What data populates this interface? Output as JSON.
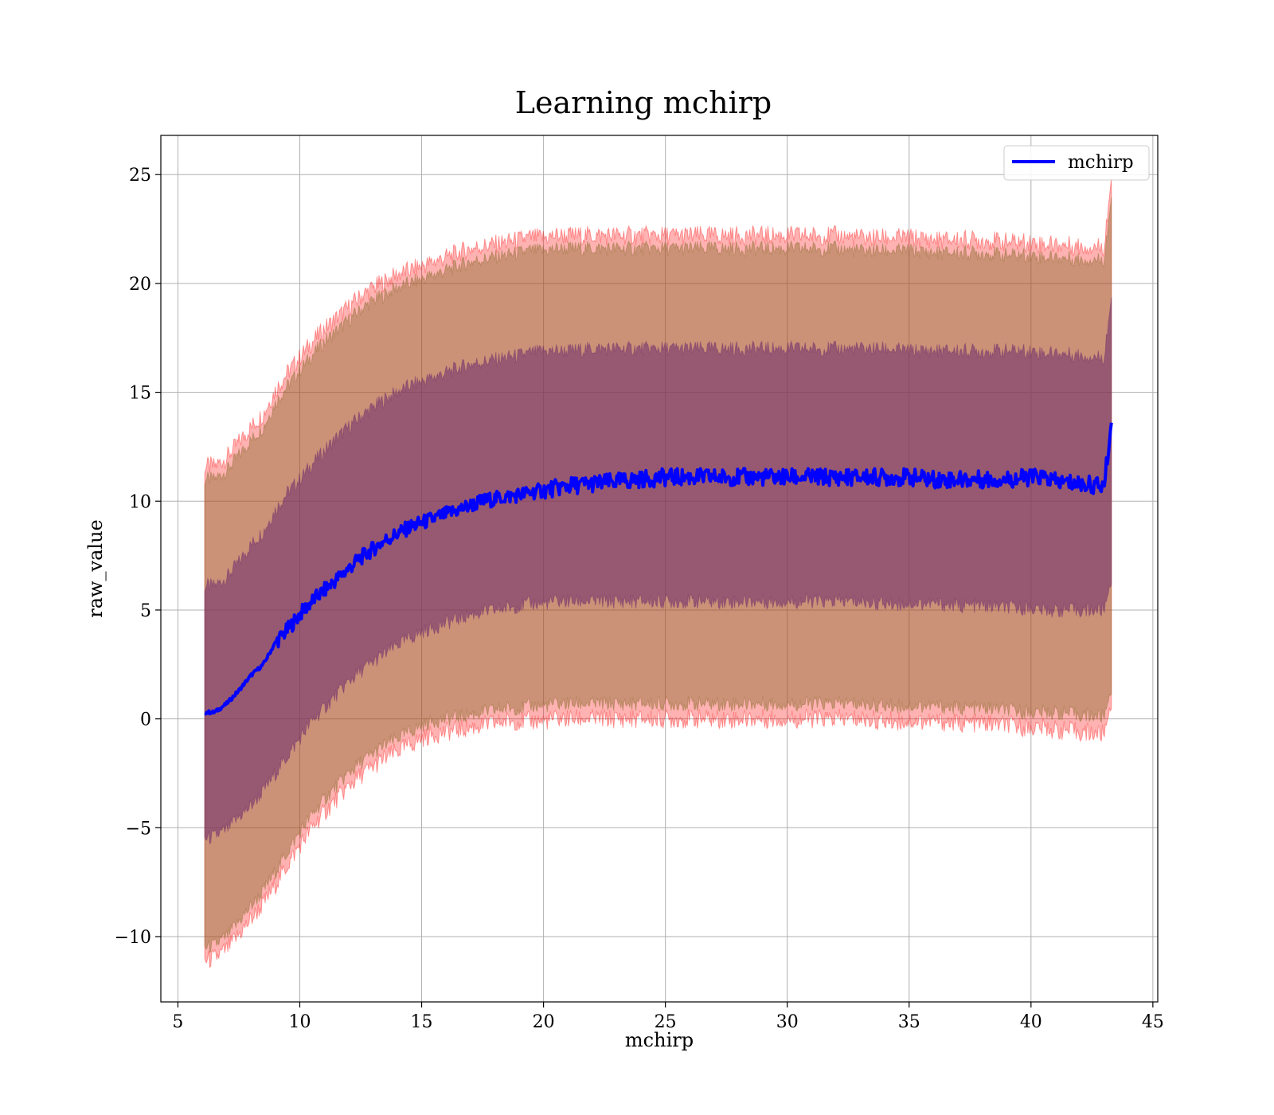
{
  "chart_data": {
    "type": "line",
    "title": "Learning mchirp",
    "xlabel": "mchirp",
    "ylabel": "raw_value",
    "xlim": [
      4.3,
      45.2
    ],
    "ylim": [
      -13,
      26.8
    ],
    "xticks": [
      5,
      10,
      15,
      20,
      25,
      30,
      35,
      40,
      45
    ],
    "yticks": [
      -10,
      -5,
      0,
      5,
      10,
      15,
      20,
      25
    ],
    "xtick_labels": [
      "5",
      "10",
      "15",
      "20",
      "25",
      "30",
      "35",
      "40",
      "45"
    ],
    "ytick_labels": [
      "−10",
      "−5",
      "0",
      "5",
      "10",
      "15",
      "20",
      "25"
    ],
    "grid": true,
    "legend": {
      "position": "top-right",
      "entries": [
        "mchirp"
      ]
    },
    "colors": {
      "mean_line": "#0000ff",
      "band_outer": "#ff0000",
      "band_inner_outer": "#8b6b2e",
      "band_inner": "#6e2a6e",
      "grid": "#b0b0b0"
    },
    "series": [
      {
        "name": "mchirp",
        "x": [
          6.1,
          6.5,
          7,
          7.5,
          8,
          8.5,
          9,
          9.5,
          10,
          10.5,
          11,
          11.5,
          12,
          12.5,
          13,
          13.5,
          14,
          14.5,
          15,
          15.5,
          16,
          16.5,
          17,
          17.5,
          18,
          18.5,
          19,
          19.5,
          20,
          20.5,
          21,
          22,
          23,
          24,
          25,
          26,
          27,
          28,
          29,
          30,
          31,
          32,
          33,
          34,
          35,
          36,
          37,
          38,
          39,
          40,
          40.5,
          41,
          42,
          43,
          43.3
        ],
        "mean": [
          0.3,
          0.3,
          0.7,
          1.3,
          2.0,
          2.5,
          3.5,
          4.1,
          4.8,
          5.4,
          5.9,
          6.4,
          6.9,
          7.4,
          7.8,
          8.2,
          8.5,
          8.8,
          9.0,
          9.2,
          9.4,
          9.6,
          9.8,
          10.0,
          10.1,
          10.2,
          10.3,
          10.4,
          10.5,
          10.6,
          10.7,
          10.8,
          10.9,
          11.0,
          11.1,
          11.1,
          11.1,
          11.1,
          11.1,
          11.1,
          11.1,
          11.1,
          11.1,
          11.1,
          11.1,
          11.0,
          11.0,
          11.0,
          11.0,
          11.1,
          11.1,
          10.9,
          10.8,
          10.7,
          13.6
        ],
        "sd1_lower": [
          -5.5,
          -5.4,
          -5.1,
          -4.5,
          -4.0,
          -3.3,
          -2.5,
          -1.7,
          -0.9,
          -0.1,
          0.5,
          1.1,
          1.7,
          2.2,
          2.6,
          3.0,
          3.4,
          3.7,
          4.0,
          4.2,
          4.4,
          4.6,
          4.8,
          4.9,
          5.0,
          5.1,
          5.2,
          5.3,
          5.3,
          5.4,
          5.4,
          5.4,
          5.4,
          5.4,
          5.4,
          5.4,
          5.4,
          5.4,
          5.4,
          5.4,
          5.4,
          5.4,
          5.4,
          5.3,
          5.3,
          5.3,
          5.2,
          5.2,
          5.1,
          5.1,
          5.0,
          5.0,
          5.0,
          5.0,
          6.5
        ],
        "sd1_upper": [
          6.1,
          6.1,
          6.5,
          7.2,
          8.0,
          8.6,
          9.6,
          10.4,
          11.0,
          11.7,
          12.3,
          12.9,
          13.4,
          13.9,
          14.3,
          14.7,
          15.0,
          15.3,
          15.5,
          15.7,
          15.9,
          16.1,
          16.3,
          16.4,
          16.5,
          16.6,
          16.7,
          16.8,
          16.9,
          16.9,
          16.9,
          17.0,
          17.0,
          17.0,
          17.0,
          17.0,
          17.0,
          17.0,
          17.0,
          17.0,
          17.0,
          17.0,
          17.0,
          17.0,
          16.9,
          16.9,
          16.9,
          16.9,
          16.9,
          16.9,
          16.8,
          16.8,
          16.7,
          16.6,
          19.4
        ],
        "sd2_lower": [
          -10.5,
          -10.4,
          -10.0,
          -9.3,
          -8.6,
          -7.9,
          -7.0,
          -6.1,
          -5.2,
          -4.4,
          -3.7,
          -3.1,
          -2.5,
          -2.0,
          -1.6,
          -1.2,
          -0.9,
          -0.6,
          -0.3,
          -0.1,
          0.0,
          0.1,
          0.2,
          0.3,
          0.4,
          0.5,
          0.5,
          0.6,
          0.6,
          0.7,
          0.7,
          0.7,
          0.7,
          0.7,
          0.7,
          0.7,
          0.7,
          0.7,
          0.7,
          0.7,
          0.7,
          0.7,
          0.7,
          0.6,
          0.6,
          0.6,
          0.5,
          0.5,
          0.4,
          0.3,
          0.3,
          0.3,
          0.2,
          0.1,
          1.5
        ],
        "sd2_upper": [
          11.0,
          11.0,
          11.4,
          12.1,
          12.8,
          13.4,
          14.5,
          15.3,
          16.0,
          16.7,
          17.3,
          17.8,
          18.3,
          18.8,
          19.2,
          19.5,
          19.8,
          20.0,
          20.2,
          20.4,
          20.6,
          20.8,
          21.0,
          21.1,
          21.2,
          21.3,
          21.4,
          21.5,
          21.5,
          21.6,
          21.6,
          21.6,
          21.6,
          21.6,
          21.6,
          21.6,
          21.6,
          21.6,
          21.6,
          21.6,
          21.6,
          21.6,
          21.5,
          21.5,
          21.5,
          21.4,
          21.4,
          21.4,
          21.3,
          21.3,
          21.2,
          21.2,
          21.1,
          21.1,
          24.0
        ],
        "sd2max_lower": [
          -11.1,
          -11.0,
          -10.6,
          -9.9,
          -9.2,
          -8.5,
          -7.6,
          -6.7,
          -5.8,
          -5.0,
          -4.3,
          -3.7,
          -3.1,
          -2.6,
          -2.2,
          -1.8,
          -1.5,
          -1.2,
          -0.9,
          -0.7,
          -0.6,
          -0.5,
          -0.4,
          -0.3,
          -0.2,
          -0.1,
          -0.1,
          -0.1,
          -0.1,
          0.0,
          0.0,
          0.0,
          0.0,
          0.0,
          0.0,
          0.0,
          0.0,
          0.0,
          0.0,
          0.0,
          0.0,
          0.0,
          0.0,
          -0.1,
          -0.1,
          -0.1,
          -0.2,
          -0.2,
          -0.3,
          -0.4,
          -0.4,
          -0.5,
          -0.6,
          -0.7,
          0.9
        ],
        "sd2max_upper": [
          11.6,
          11.6,
          12.0,
          12.7,
          13.4,
          14.0,
          15.1,
          15.9,
          16.6,
          17.3,
          17.9,
          18.4,
          18.9,
          19.4,
          19.8,
          20.1,
          20.4,
          20.6,
          20.8,
          21.0,
          21.2,
          21.4,
          21.6,
          21.7,
          21.8,
          21.9,
          22.0,
          22.1,
          22.1,
          22.2,
          22.2,
          22.2,
          22.2,
          22.2,
          22.2,
          22.2,
          22.2,
          22.2,
          22.2,
          22.2,
          22.2,
          22.2,
          22.1,
          22.1,
          22.1,
          22.0,
          22.0,
          22.0,
          21.9,
          21.9,
          21.8,
          21.8,
          21.7,
          21.7,
          24.9
        ]
      }
    ]
  }
}
